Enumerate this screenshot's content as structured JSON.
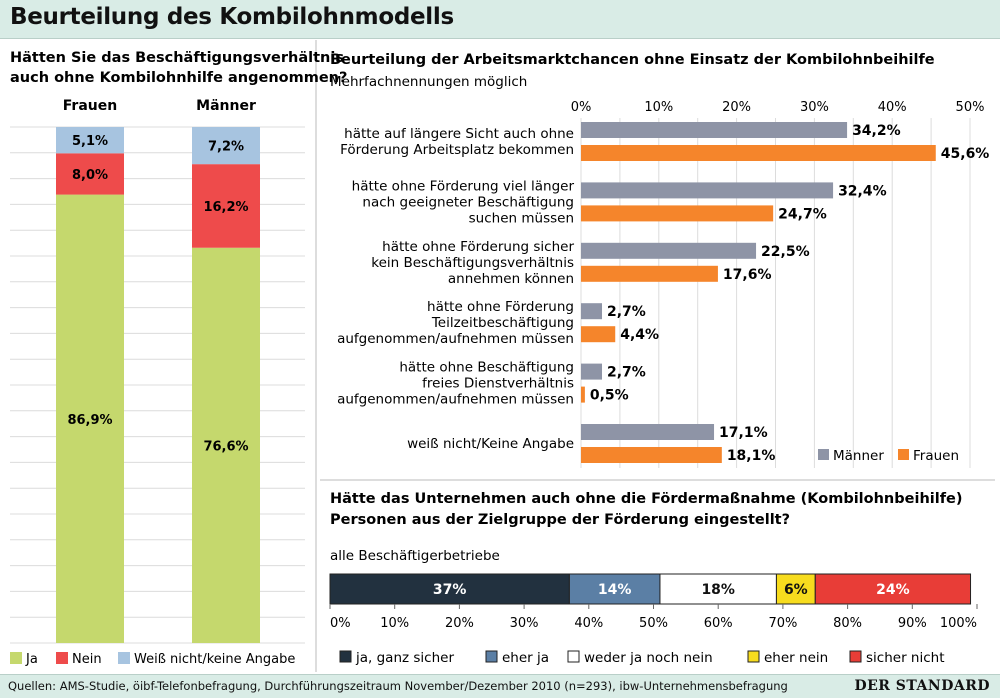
{
  "title": "Beurteilung des Kombilohnmodells",
  "source": "Quellen: AMS-Studie, öibf-Telefonbefragung, Durchführungszeitraum November/Dezember 2010 (n=293), ibw-Unternehmensbefragung",
  "brand": "DER STANDARD",
  "colors": {
    "ja": "#c5d86d",
    "nein": "#ee4b4b",
    "weiss": "#a7c4e0",
    "maenner": "#8e94a6",
    "frauen": "#f5852b",
    "c1": "#22313f",
    "c2": "#5b7fa5",
    "c3": "#ffffff",
    "c4": "#f7dc1e",
    "c5": "#e83d37",
    "grid": "#dcdcdc"
  },
  "chart_data": [
    {
      "type": "bar",
      "stacked": true,
      "title_lines": [
        "Hätten Sie das Beschäftigungsverhältnis",
        "auch ohne Kombilohnhilfe angenommen?"
      ],
      "categories": [
        "Frauen",
        "Männer"
      ],
      "series": [
        {
          "name": "Ja",
          "color_key": "ja",
          "values": [
            86.9,
            76.6
          ],
          "labels": [
            "86,9%",
            "76,6%"
          ]
        },
        {
          "name": "Nein",
          "color_key": "nein",
          "values": [
            8.0,
            16.2
          ],
          "labels": [
            "8,0%",
            "16,2%"
          ]
        },
        {
          "name": "Weiß nicht/keine Angabe",
          "color_key": "weiss",
          "values": [
            5.1,
            7.2
          ],
          "labels": [
            "5,1%",
            "7,2%"
          ]
        }
      ],
      "ylim": [
        0,
        100
      ]
    },
    {
      "type": "bar",
      "orientation": "horizontal",
      "title": "Beurteilung der Arbeitsmarktchancen ohne Einsatz der Kombilohnbeihilfe",
      "subtitle": "Mehrfachnennungen möglich",
      "xlim": [
        0,
        50
      ],
      "ticks": [
        0,
        10,
        20,
        30,
        40,
        50
      ],
      "tick_labels": [
        "0%",
        "10%",
        "20%",
        "30%",
        "40%",
        "50%"
      ],
      "categories": [
        [
          "hätte auf längere Sicht auch ohne",
          "Förderung Arbeitsplatz bekommen"
        ],
        [
          "hätte ohne Förderung viel länger",
          "nach geeigneter Beschäftigung",
          "suchen müssen"
        ],
        [
          "hätte ohne Förderung sicher",
          "kein Beschäftigungsverhältnis",
          "annehmen können"
        ],
        [
          "hätte ohne Förderung",
          "Teilzeitbeschäftigung",
          "aufgenommen/aufnehmen müssen"
        ],
        [
          "hätte ohne Beschäftigung",
          "freies Dienstverhältnis",
          "aufgenommen/aufnehmen müssen"
        ],
        [
          "weiß nicht/Keine Angabe"
        ]
      ],
      "series": [
        {
          "name": "Männer",
          "color_key": "maenner",
          "values": [
            34.2,
            32.4,
            22.5,
            2.7,
            2.7,
            17.1
          ],
          "labels": [
            "34,2%",
            "32,4%",
            "22,5%",
            "2,7%",
            "2,7%",
            "17,1%"
          ]
        },
        {
          "name": "Frauen",
          "color_key": "frauen",
          "values": [
            45.6,
            24.7,
            17.6,
            4.4,
            0.5,
            18.1
          ],
          "labels": [
            "45,6%",
            "24,7%",
            "17,6%",
            "4,4%",
            "0,5%",
            "18,1%"
          ]
        }
      ],
      "legend": "bottom-right"
    },
    {
      "type": "bar",
      "orientation": "horizontal",
      "stacked": true,
      "title_lines": [
        "Hätte das Unternehmen auch ohne die Fördermaßnahme (Kombilohnbeihilfe)",
        "Personen aus der Zielgruppe der Förderung eingestellt?"
      ],
      "category": "alle Beschäftigerbetriebe",
      "xlim": [
        0,
        100
      ],
      "ticks": [
        0,
        10,
        20,
        30,
        40,
        50,
        60,
        70,
        80,
        90,
        100
      ],
      "tick_labels": [
        "0%",
        "10%",
        "20%",
        "30%",
        "40%",
        "50%",
        "60%",
        "70%",
        "80%",
        "90%",
        "100%"
      ],
      "series": [
        {
          "name": "ja, ganz sicher",
          "color_key": "c1",
          "value": 37,
          "label": "37%"
        },
        {
          "name": "eher ja",
          "color_key": "c2",
          "value": 14,
          "label": "14%"
        },
        {
          "name": "weder ja noch nein",
          "color_key": "c3",
          "value": 18,
          "label": "18%"
        },
        {
          "name": "eher nein",
          "color_key": "c4",
          "value": 6,
          "label": "6%"
        },
        {
          "name": "sicher nicht",
          "color_key": "c5",
          "value": 24,
          "label": "24%"
        }
      ]
    }
  ]
}
